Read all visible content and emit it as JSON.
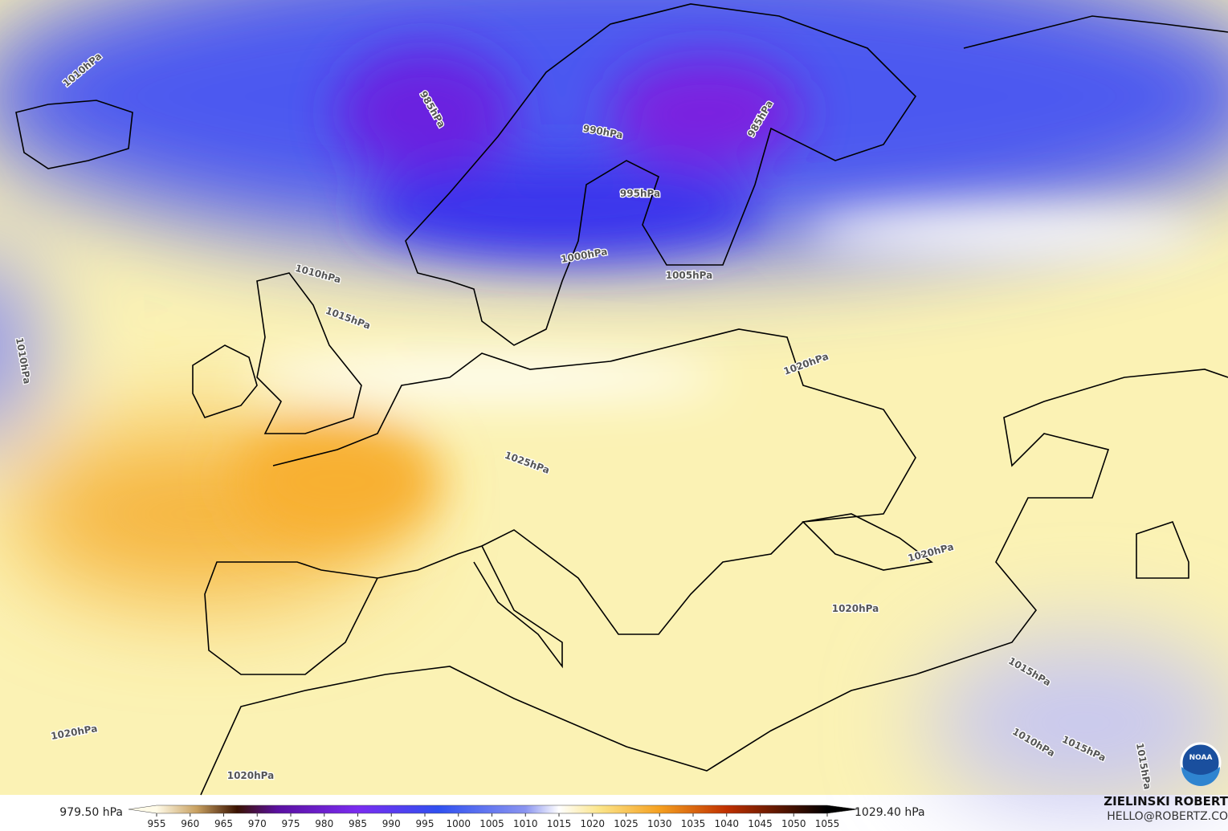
{
  "map": {
    "contour_labels": [
      "1010hPa",
      "985hPa",
      "990hPa",
      "985hPa",
      "995hPa",
      "1000hPa",
      "1005hPa",
      "1010hPa",
      "1015hPa",
      "1010hPa",
      "1020hPa",
      "1025hPa",
      "1020hPa",
      "1020hPa",
      "1015hPa",
      "1020hPa",
      "1010hPa",
      "1015hPa",
      "1015hPa",
      "1020hPa"
    ],
    "colorbar": {
      "min_label": "979.50 hPa",
      "max_label": "1029.40 hPa",
      "ticks": [
        955,
        960,
        965,
        970,
        975,
        980,
        985,
        990,
        995,
        1000,
        1005,
        1010,
        1015,
        1020,
        1025,
        1030,
        1035,
        1040,
        1045,
        1050,
        1055
      ]
    },
    "credit": {
      "name": "ZIELINSKI ROBERT",
      "email": "HELLO@ROBERTZ.CO"
    },
    "logo": "NOAA"
  }
}
